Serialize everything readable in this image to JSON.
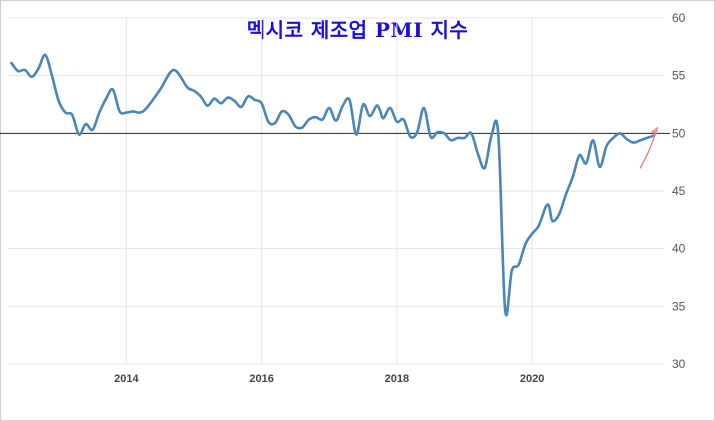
{
  "chart_data": {
    "type": "line",
    "title": "멕시코 제조업 PMI 지수",
    "xlabel": "",
    "ylabel": "",
    "x_ticks": [
      "2014",
      "2016",
      "2018",
      "2020"
    ],
    "y_ticks": [
      30,
      35,
      40,
      45,
      50,
      55,
      60
    ],
    "xlim": [
      2012.25,
      2021.95
    ],
    "ylim": [
      30,
      60
    ],
    "reference_line": 50,
    "grid": true,
    "axis_side": "right",
    "series": [
      {
        "color": "#4a86b8",
        "x": [
          2012.3,
          2012.4,
          2012.5,
          2012.6,
          2012.7,
          2012.8,
          2012.9,
          2013.0,
          2013.1,
          2013.2,
          2013.3,
          2013.4,
          2013.5,
          2013.6,
          2013.7,
          2013.8,
          2013.9,
          2014.0,
          2014.1,
          2014.2,
          2014.3,
          2014.5,
          2014.7,
          2014.9,
          2015.0,
          2015.1,
          2015.2,
          2015.3,
          2015.4,
          2015.5,
          2015.6,
          2015.7,
          2015.8,
          2015.9,
          2016.0,
          2016.1,
          2016.2,
          2016.3,
          2016.4,
          2016.5,
          2016.6,
          2016.7,
          2016.8,
          2016.9,
          2017.0,
          2017.1,
          2017.2,
          2017.3,
          2017.4,
          2017.5,
          2017.6,
          2017.7,
          2017.75,
          2017.8,
          2017.9,
          2018.0,
          2018.1,
          2018.2,
          2018.3,
          2018.4,
          2018.5,
          2018.6,
          2018.7,
          2018.8,
          2018.9,
          2019.0,
          2019.1,
          2019.2,
          2019.3,
          2019.4,
          2019.5,
          2019.6,
          2019.7,
          2019.8,
          2019.9,
          2020.0,
          2020.1,
          2020.2,
          2020.25,
          2020.3,
          2020.4,
          2020.5,
          2020.6,
          2020.7,
          2020.8,
          2020.9,
          2021.0,
          2021.1,
          2021.2,
          2021.3,
          2021.4,
          2021.5,
          2021.6,
          2021.7,
          2021.8
        ],
        "y": [
          56.1,
          55.4,
          55.5,
          54.9,
          55.6,
          56.8,
          55.0,
          52.8,
          51.8,
          51.6,
          49.9,
          50.8,
          50.3,
          51.8,
          53.0,
          53.8,
          51.9,
          51.8,
          51.9,
          51.8,
          52.2,
          53.8,
          55.5,
          54.0,
          53.7,
          53.2,
          52.4,
          53.0,
          52.6,
          53.1,
          52.8,
          52.3,
          53.2,
          52.9,
          52.6,
          51.0,
          50.9,
          51.9,
          51.6,
          50.6,
          50.5,
          51.2,
          51.4,
          51.2,
          52.2,
          51.1,
          52.4,
          52.9,
          49.9,
          52.5,
          51.5,
          52.4,
          52.0,
          51.3,
          52.2,
          51.0,
          51.2,
          49.7,
          50.1,
          52.2,
          49.7,
          50.1,
          50.0,
          49.4,
          49.6,
          49.6,
          50.0,
          48.2,
          47.0,
          49.8,
          49.9,
          34.7,
          38.1,
          38.6,
          40.4,
          41.3,
          42.0,
          43.6,
          43.7,
          42.4,
          43.0,
          44.7,
          46.2,
          48.1,
          47.4,
          49.4,
          47.1,
          48.9,
          49.6,
          50.0,
          49.5,
          49.2,
          49.4,
          49.6,
          49.8
        ]
      }
    ],
    "forecast": {
      "color": "#f08080",
      "x": [
        2021.6,
        2021.72,
        2021.84
      ],
      "y": [
        47.0,
        48.4,
        50.2
      ]
    }
  }
}
